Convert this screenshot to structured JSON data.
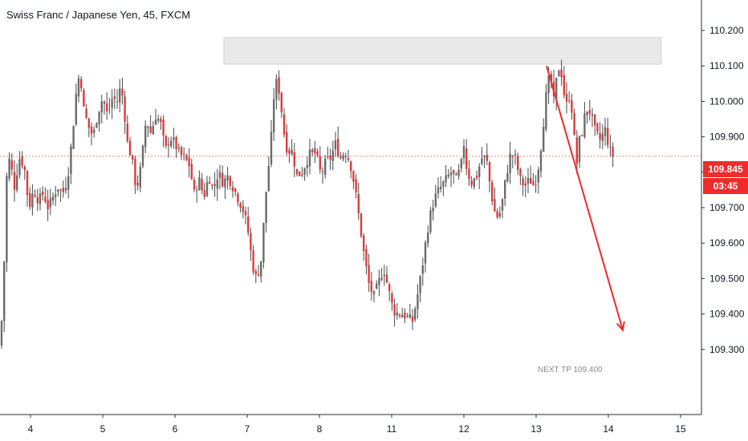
{
  "header": {
    "title": "Swiss Franc / Japanese Yen, 45, FXCM"
  },
  "price_axis": {
    "ticks": [
      "110.200",
      "110.100",
      "110.000",
      "109.900",
      "109.800",
      "109.700",
      "109.600",
      "109.500",
      "109.400",
      "109.300"
    ],
    "current_price_label": "109.845",
    "countdown_label": "03:45",
    "current_price": 109.845
  },
  "time_axis": {
    "ticks": [
      "4",
      "5",
      "6",
      "7",
      "8",
      "11",
      "12",
      "13",
      "14",
      "15"
    ]
  },
  "annotations": {
    "next_tp_text": "NEXT TP 109.400"
  },
  "colors": {
    "up": "#6b6b6b",
    "down": "#e03a3a",
    "wick": "#4a4a4a",
    "accent_red": "#ef2b2b",
    "zone_fill": "#e9e9e9",
    "zone_border": "#cfcfcf",
    "axis_text": "#131722",
    "current_line": "#f28b82"
  },
  "chart_data": {
    "type": "candlestick",
    "title": "Swiss Franc / Japanese Yen, 45, FXCM",
    "ylim": [
      109.21,
      110.265
    ],
    "x_ticks": [
      "4",
      "5",
      "6",
      "7",
      "8",
      "11",
      "12",
      "13",
      "14",
      "15"
    ],
    "resistance_zone": {
      "from": 110.105,
      "to": 110.18
    },
    "projection": {
      "from": 110.1,
      "to": 109.35,
      "label": "NEXT TP 109.400"
    },
    "close_path": [
      [
        0,
        109.31
      ],
      [
        4,
        109.45
      ],
      [
        8,
        109.78
      ],
      [
        12,
        109.84
      ],
      [
        18,
        109.76
      ],
      [
        24,
        109.84
      ],
      [
        30,
        109.82
      ],
      [
        36,
        109.7
      ],
      [
        42,
        109.75
      ],
      [
        48,
        109.72
      ],
      [
        54,
        109.74
      ],
      [
        60,
        109.7
      ],
      [
        66,
        109.73
      ],
      [
        72,
        109.76
      ],
      [
        78,
        109.74
      ],
      [
        84,
        109.78
      ],
      [
        90,
        109.9
      ],
      [
        96,
        110.05
      ],
      [
        100,
        110.08
      ],
      [
        104,
        109.98
      ],
      [
        110,
        109.93
      ],
      [
        116,
        109.9
      ],
      [
        122,
        109.97
      ],
      [
        128,
        110.01
      ],
      [
        134,
        109.96
      ],
      [
        140,
        110.01
      ],
      [
        146,
        110.0
      ],
      [
        150,
        110.04
      ],
      [
        154,
        110.0
      ],
      [
        158,
        109.89
      ],
      [
        164,
        109.84
      ],
      [
        170,
        109.75
      ],
      [
        176,
        109.82
      ],
      [
        182,
        109.95
      ],
      [
        188,
        109.91
      ],
      [
        194,
        109.96
      ],
      [
        200,
        109.94
      ],
      [
        206,
        109.86
      ],
      [
        212,
        109.9
      ],
      [
        218,
        109.88
      ],
      [
        224,
        109.85
      ],
      [
        230,
        109.84
      ],
      [
        236,
        109.82
      ],
      [
        242,
        109.74
      ],
      [
        248,
        109.78
      ],
      [
        254,
        109.73
      ],
      [
        260,
        109.79
      ],
      [
        266,
        109.75
      ],
      [
        272,
        109.8
      ],
      [
        278,
        109.77
      ],
      [
        284,
        109.79
      ],
      [
        290,
        109.76
      ],
      [
        296,
        109.73
      ],
      [
        302,
        109.7
      ],
      [
        308,
        109.65
      ],
      [
        314,
        109.55
      ],
      [
        318,
        109.5
      ],
      [
        322,
        109.52
      ],
      [
        326,
        109.56
      ],
      [
        330,
        109.71
      ],
      [
        334,
        109.8
      ],
      [
        338,
        109.9
      ],
      [
        342,
        110.04
      ],
      [
        346,
        110.06
      ],
      [
        350,
        109.99
      ],
      [
        354,
        109.91
      ],
      [
        358,
        109.86
      ],
      [
        364,
        109.86
      ],
      [
        370,
        109.79
      ],
      [
        376,
        109.8
      ],
      [
        382,
        109.83
      ],
      [
        388,
        109.86
      ],
      [
        394,
        109.85
      ],
      [
        400,
        109.79
      ],
      [
        406,
        109.83
      ],
      [
        412,
        109.84
      ],
      [
        418,
        109.88
      ],
      [
        424,
        109.84
      ],
      [
        430,
        109.86
      ],
      [
        436,
        109.83
      ],
      [
        442,
        109.76
      ],
      [
        448,
        109.66
      ],
      [
        454,
        109.56
      ],
      [
        460,
        109.48
      ],
      [
        466,
        109.45
      ],
      [
        472,
        109.49
      ],
      [
        478,
        109.53
      ],
      [
        484,
        109.47
      ],
      [
        490,
        109.41
      ],
      [
        496,
        109.4
      ],
      [
        502,
        109.4
      ],
      [
        508,
        109.39
      ],
      [
        514,
        109.38
      ],
      [
        520,
        109.45
      ],
      [
        526,
        109.53
      ],
      [
        532,
        109.63
      ],
      [
        538,
        109.7
      ],
      [
        544,
        109.74
      ],
      [
        550,
        109.76
      ],
      [
        556,
        109.78
      ],
      [
        562,
        109.8
      ],
      [
        568,
        109.78
      ],
      [
        574,
        109.81
      ],
      [
        578,
        109.88
      ],
      [
        582,
        109.8
      ],
      [
        588,
        109.77
      ],
      [
        594,
        109.79
      ],
      [
        600,
        109.84
      ],
      [
        606,
        109.84
      ],
      [
        612,
        109.74
      ],
      [
        618,
        109.67
      ],
      [
        624,
        109.69
      ],
      [
        630,
        109.78
      ],
      [
        636,
        109.85
      ],
      [
        642,
        109.84
      ],
      [
        648,
        109.78
      ],
      [
        654,
        109.76
      ],
      [
        660,
        109.78
      ],
      [
        666,
        109.76
      ],
      [
        672,
        109.83
      ],
      [
        678,
        109.96
      ],
      [
        682,
        110.05
      ],
      [
        686,
        110.07
      ],
      [
        690,
        110.0
      ],
      [
        694,
        110.07
      ],
      [
        698,
        110.11
      ],
      [
        702,
        110.03
      ],
      [
        706,
        109.99
      ],
      [
        710,
        110.02
      ],
      [
        714,
        109.95
      ],
      [
        718,
        109.81
      ],
      [
        722,
        109.89
      ],
      [
        726,
        109.92
      ],
      [
        730,
        109.98
      ],
      [
        736,
        109.97
      ],
      [
        742,
        109.91
      ],
      [
        748,
        109.89
      ],
      [
        754,
        109.92
      ],
      [
        760,
        109.86
      ],
      [
        764,
        109.845
      ]
    ]
  }
}
